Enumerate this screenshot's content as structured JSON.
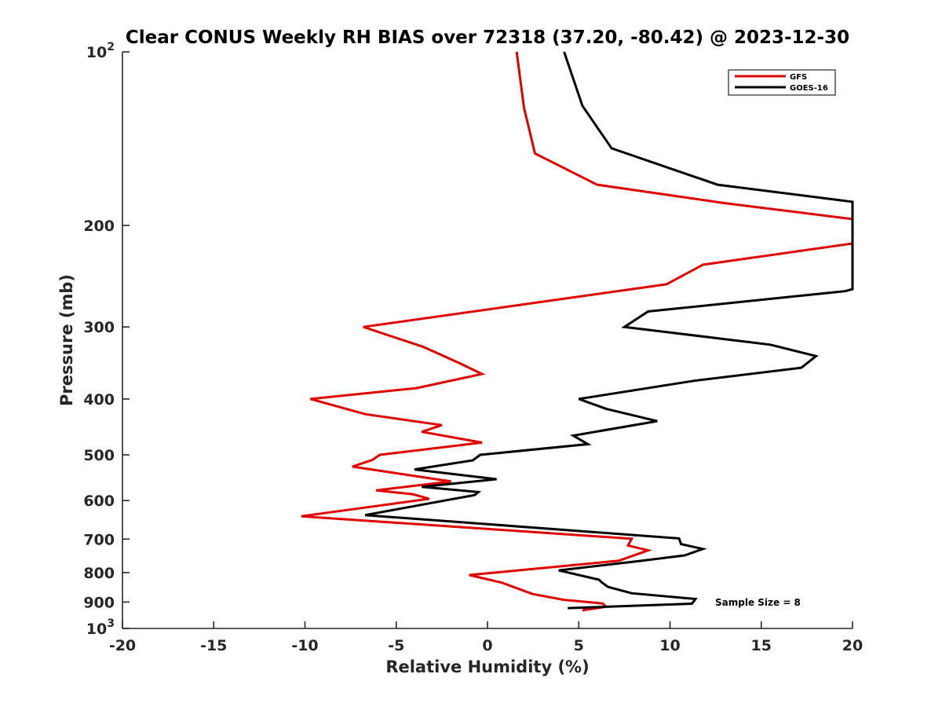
{
  "chart_data": {
    "type": "line",
    "title": "Clear CONUS Weekly RH BIAS over 72318 (37.20, -80.42) @ 2023-12-30",
    "xlabel": "Relative Humidity (%)",
    "ylabel": "Pressure (mb)",
    "xlim": [
      -20,
      20
    ],
    "ylim": [
      100,
      1000
    ],
    "yscale": "log",
    "yreversed": true,
    "grid": false,
    "legend_position": "top-right",
    "x_ticks": [
      "-20",
      "-15",
      "-10",
      "-5",
      "0",
      "5",
      "10",
      "15",
      "20"
    ],
    "y_ticks": [
      {
        "value": 100,
        "base": "10",
        "exp": "2"
      },
      {
        "value": 200,
        "label": "200"
      },
      {
        "value": 300,
        "label": "300"
      },
      {
        "value": 400,
        "label": "400"
      },
      {
        "value": 500,
        "label": "500"
      },
      {
        "value": 600,
        "label": "600"
      },
      {
        "value": 700,
        "label": "700"
      },
      {
        "value": 800,
        "label": "800"
      },
      {
        "value": 900,
        "label": "900"
      },
      {
        "value": 1000,
        "base": "10",
        "exp": "3"
      }
    ],
    "annotation": "Sample Size = 8",
    "series": [
      {
        "name": "GFS",
        "color": "#e00000",
        "points": [
          [
            1.6,
            100
          ],
          [
            2.0,
            125
          ],
          [
            2.6,
            150
          ],
          [
            6.0,
            170
          ],
          [
            13.0,
            183
          ],
          [
            20.0,
            195
          ],
          [
            20.0,
            215
          ],
          [
            11.8,
            234
          ],
          [
            9.8,
            253
          ],
          [
            -6.8,
            300
          ],
          [
            -3.5,
            325
          ],
          [
            -1.5,
            347
          ],
          [
            -0.3,
            362
          ],
          [
            -3.9,
            383
          ],
          [
            -9.7,
            400
          ],
          [
            -6.7,
            425
          ],
          [
            -2.5,
            444
          ],
          [
            -3.6,
            456
          ],
          [
            -0.3,
            476
          ],
          [
            -5.9,
            500
          ],
          [
            -6.3,
            510
          ],
          [
            -7.4,
            524
          ],
          [
            -2.0,
            556
          ],
          [
            -6.1,
            576
          ],
          [
            -4.1,
            585
          ],
          [
            -3.2,
            596
          ],
          [
            -10.2,
            639
          ],
          [
            7.9,
            699
          ],
          [
            7.7,
            718
          ],
          [
            8.8,
            732
          ],
          [
            7.2,
            763
          ],
          [
            -1.0,
            808
          ],
          [
            0.8,
            833
          ],
          [
            2.2,
            865
          ],
          [
            2.5,
            872
          ],
          [
            4.2,
            892
          ],
          [
            6.3,
            905
          ],
          [
            6.5,
            917
          ],
          [
            5.2,
            930
          ]
        ]
      },
      {
        "name": "GOES-16",
        "color": "#000000",
        "points": [
          [
            4.2,
            100
          ],
          [
            5.2,
            124
          ],
          [
            6.8,
            147
          ],
          [
            12.6,
            170
          ],
          [
            20.0,
            182
          ],
          [
            20.0,
            258
          ],
          [
            19.6,
            260
          ],
          [
            8.8,
            282
          ],
          [
            7.5,
            300
          ],
          [
            15.5,
            322
          ],
          [
            18.0,
            337
          ],
          [
            17.2,
            353
          ],
          [
            11.3,
            372
          ],
          [
            5.0,
            400
          ],
          [
            6.5,
            416
          ],
          [
            9.3,
            437
          ],
          [
            4.7,
            463
          ],
          [
            5.5,
            479
          ],
          [
            -0.4,
            500
          ],
          [
            -0.8,
            511
          ],
          [
            -4.0,
            530
          ],
          [
            0.5,
            551
          ],
          [
            -3.6,
            568
          ],
          [
            -0.5,
            580
          ],
          [
            -0.7,
            587
          ],
          [
            -6.7,
            636
          ],
          [
            10.5,
            698
          ],
          [
            10.6,
            714
          ],
          [
            11.8,
            728
          ],
          [
            10.8,
            747
          ],
          [
            8.3,
            764
          ],
          [
            3.9,
            793
          ],
          [
            6.1,
            823
          ],
          [
            6.3,
            834
          ],
          [
            6.6,
            847
          ],
          [
            7.9,
            869
          ],
          [
            11.4,
            889
          ],
          [
            11.2,
            906
          ],
          [
            4.4,
            922
          ]
        ]
      }
    ]
  }
}
